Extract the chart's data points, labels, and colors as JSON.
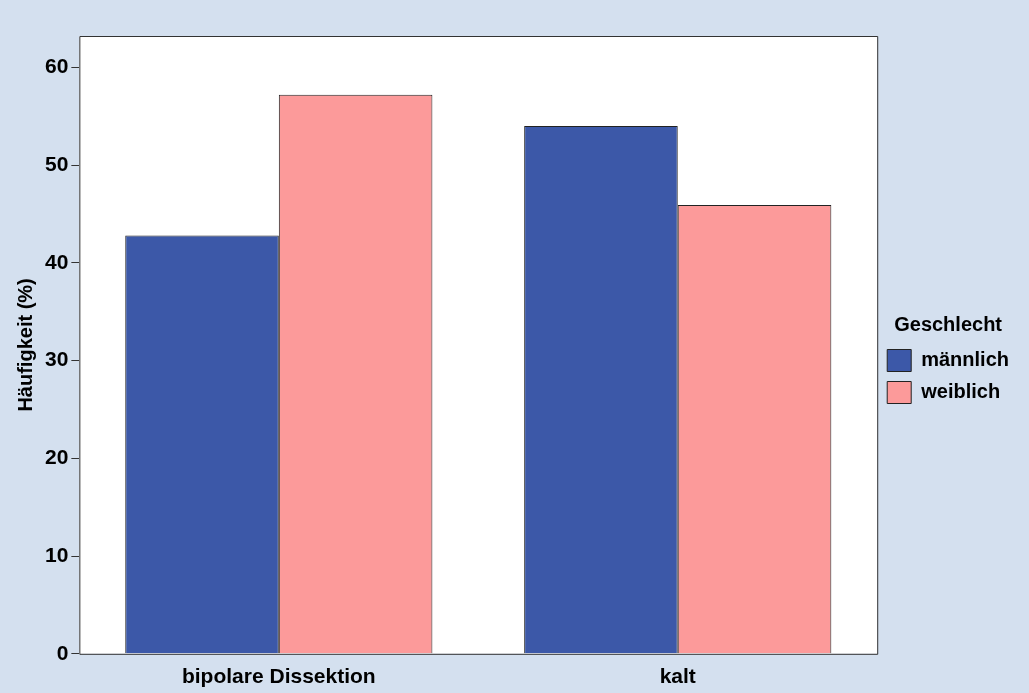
{
  "chart_data": {
    "type": "bar",
    "ylabel": "Häufigkeit (%)",
    "legend_title": "Geschlecht",
    "legend": "right",
    "categories": [
      "bipolare Dissektion",
      "kalt"
    ],
    "series": [
      {
        "name": "männlich",
        "color": "#3c58a8",
        "values": [
          42.8,
          54.0
        ]
      },
      {
        "name": "weiblich",
        "color": "#fc9a9a",
        "values": [
          57.2,
          45.9
        ]
      }
    ],
    "ylim": [
      0,
      63.2
    ],
    "yticks": [
      0,
      10,
      20,
      30,
      40,
      50,
      60
    ],
    "grid": false
  }
}
